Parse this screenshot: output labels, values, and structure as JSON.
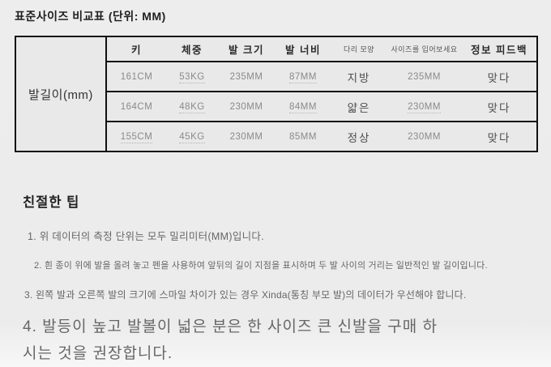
{
  "page": {
    "title": "표준사이즈 비교표 (단위: MM)"
  },
  "table": {
    "row_header": "발길이(mm)",
    "columns": [
      {
        "label": "키",
        "small": false
      },
      {
        "label": "체중",
        "small": false
      },
      {
        "label": "발 크기",
        "small": false
      },
      {
        "label": "발 너비",
        "small": false
      },
      {
        "label": "다리 모양",
        "small": true
      },
      {
        "label": "사이즈를 입어보세요",
        "small": true
      },
      {
        "label": "정보 피드백",
        "small": false
      }
    ],
    "rows": [
      {
        "cells": [
          {
            "text": "161CM",
            "dotted": false
          },
          {
            "text": "53KG",
            "dotted": true
          },
          {
            "text": "235MM",
            "dotted": false
          },
          {
            "text": "87MM",
            "dotted": true
          },
          {
            "text": "지방",
            "dotted": false
          },
          {
            "text": "235MM",
            "dotted": false
          },
          {
            "text": "맞다",
            "dotted": false
          }
        ]
      },
      {
        "cells": [
          {
            "text": "164CM",
            "dotted": false
          },
          {
            "text": "48KG",
            "dotted": true
          },
          {
            "text": "230MM",
            "dotted": false
          },
          {
            "text": "84MM",
            "dotted": true
          },
          {
            "text": "얇은",
            "dotted": false
          },
          {
            "text": "230MM",
            "dotted": true
          },
          {
            "text": "맞다",
            "dotted": false
          }
        ]
      },
      {
        "cells": [
          {
            "text": "155CM",
            "dotted": true
          },
          {
            "text": "45KG",
            "dotted": true
          },
          {
            "text": "230MM",
            "dotted": false
          },
          {
            "text": "85MM",
            "dotted": false
          },
          {
            "text": "정상",
            "dotted": false
          },
          {
            "text": "230MM",
            "dotted": false
          },
          {
            "text": "맞다",
            "dotted": false
          }
        ]
      }
    ]
  },
  "tips": {
    "heading": "친절한 팁",
    "items": [
      "1. 위 데이터의 측정 단위는 모두 밀리미터(MM)입니다.",
      "2. 흰 종이 위에 발을 올려 놓고 펜을 사용하여 앞뒤의 길이 지점을 표시하며 두 발 사이의 거리는 일반적인 발 길이입니다.",
      "3. 왼쪽 발과 오른쪽 발의 크기에 스마일 차이가 있는 경우 Xinda(통칭 부모 발)의 데이터가 우선해야 합니다.",
      "4. 발등이 높고 발볼이 넓은 분은 한 사이즈 큰 신발을 구매 하시는 것을 권장합니다."
    ]
  }
}
